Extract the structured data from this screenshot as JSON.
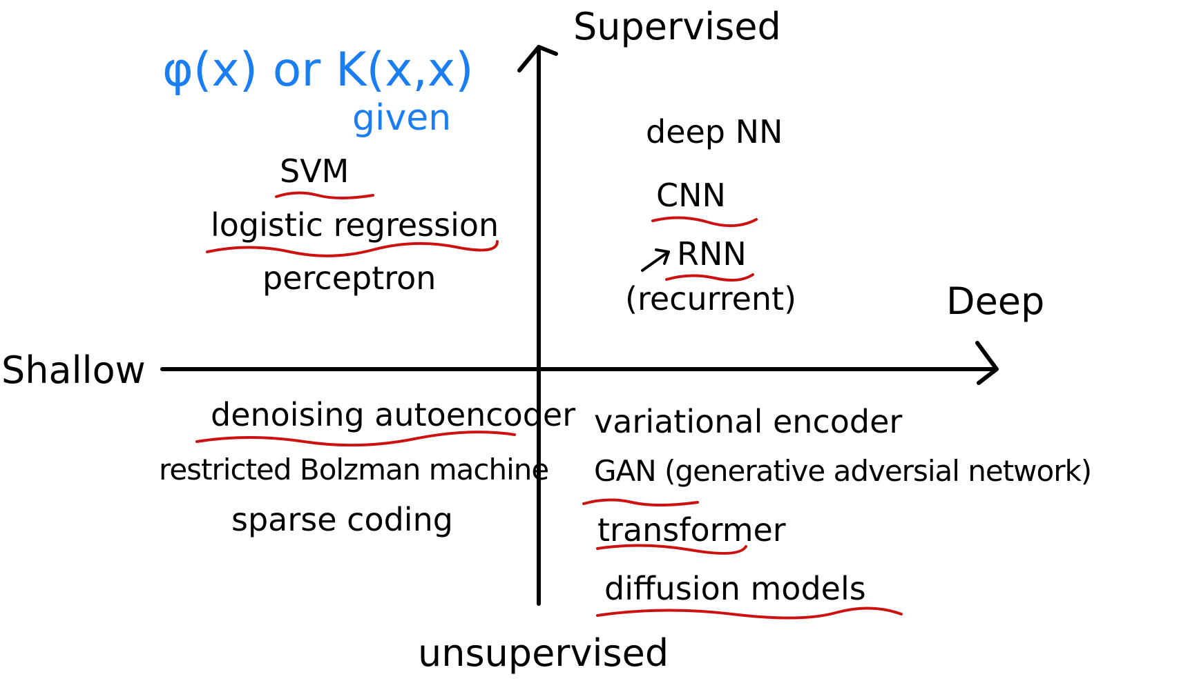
{
  "axes": {
    "top": "Supervised",
    "bottom": "unsupervised",
    "left": "Shallow",
    "right": "Deep"
  },
  "note": {
    "line1": "φ(x) or K(x,x)",
    "line2": "given"
  },
  "quadrants": {
    "top_left": [
      "SVM",
      "logistic regression",
      "perceptron"
    ],
    "top_right": [
      "deep NN",
      "CNN",
      "RNN",
      "(recurrent)"
    ],
    "bottom_left": [
      "denoising autoencoder",
      "restricted Bolzman machine",
      "sparse coding"
    ],
    "bottom_right": [
      "variational encoder",
      "GAN (generative adversial network)",
      "transformer",
      "diffusion models"
    ]
  },
  "colors": {
    "ink": "#000000",
    "note": "#1a7ef2",
    "underline": "#cc1111"
  }
}
